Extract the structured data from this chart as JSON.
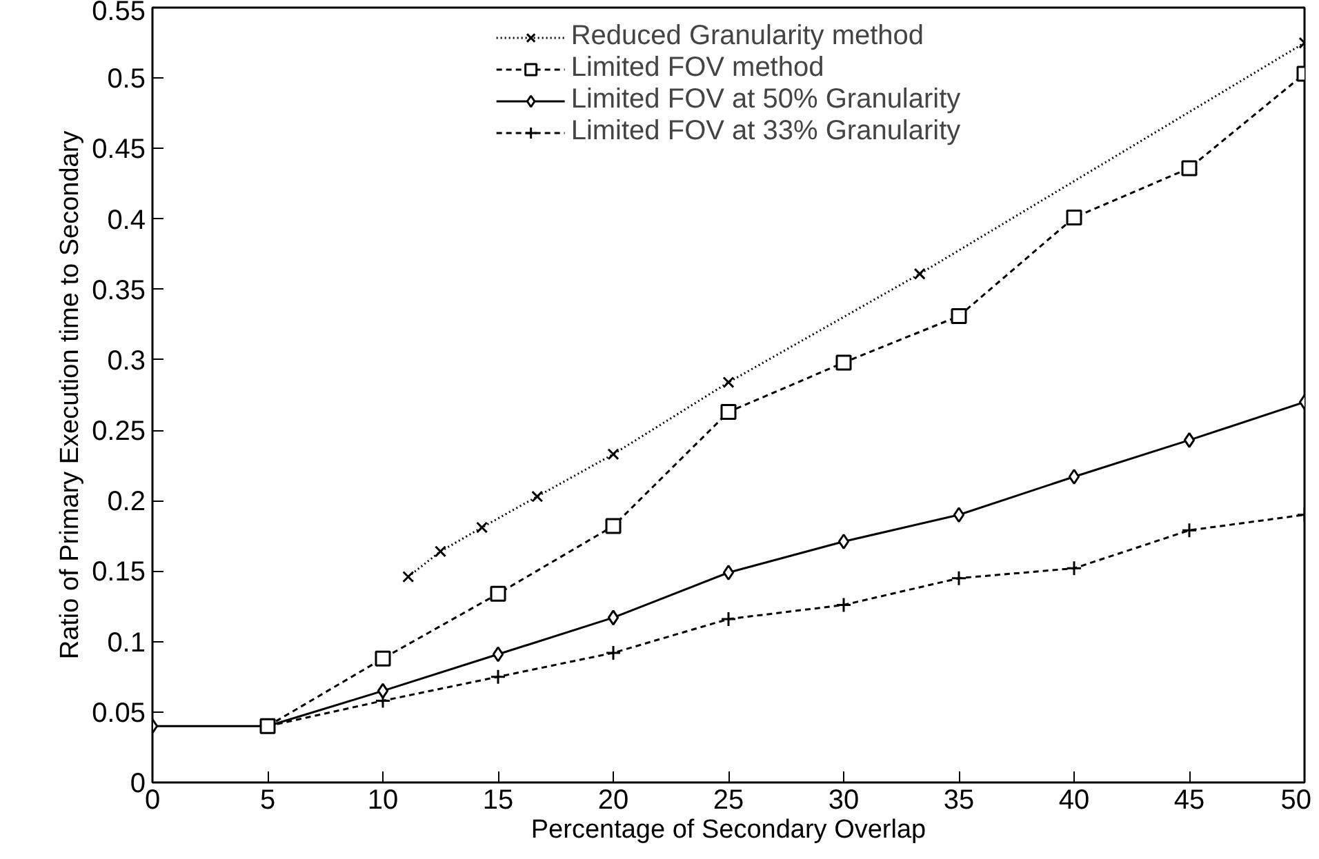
{
  "chart_data": {
    "type": "line",
    "xlabel": "Percentage of Secondary Overlap",
    "ylabel": "Ratio of Primary Execution time to Secondary",
    "xlim": [
      0,
      50
    ],
    "xticks": [
      0,
      5,
      10,
      15,
      20,
      25,
      30,
      35,
      40,
      45,
      50
    ],
    "ylim": [
      0,
      0.55
    ],
    "yticks": [
      0,
      0.05,
      0.1,
      0.15,
      0.2,
      0.25,
      0.3,
      0.35,
      0.4,
      0.45,
      0.5,
      0.55
    ],
    "grid": false,
    "legend": "top",
    "series": [
      {
        "name": "Reduced Granularity method",
        "color": "#000000",
        "marker": "x",
        "line_style": "dotted",
        "x": [
          11.1,
          12.5,
          14.3,
          16.7,
          20,
          25,
          33.3,
          50
        ],
        "values": [
          0.146,
          0.164,
          0.181,
          0.203,
          0.233,
          0.284,
          0.361,
          0.525
        ]
      },
      {
        "name": "Limited FOV method",
        "color": "#000000",
        "marker": "square",
        "line_style": "dashed",
        "x": [
          5,
          10,
          15,
          20,
          25,
          30,
          35,
          40,
          45,
          50
        ],
        "values": [
          0.04,
          0.088,
          0.134,
          0.182,
          0.263,
          0.298,
          0.331,
          0.401,
          0.436,
          0.503
        ]
      },
      {
        "name": "Limited FOV at 50% Granularity",
        "color": "#000000",
        "marker": "diamond",
        "line_style": "solid",
        "x": [
          0,
          5,
          10,
          15,
          20,
          25,
          30,
          35,
          40,
          45,
          50
        ],
        "values": [
          0.04,
          0.04,
          0.065,
          0.091,
          0.117,
          0.149,
          0.171,
          0.19,
          0.217,
          0.243,
          0.27
        ]
      },
      {
        "name": "Limited FOV at 33% Granularity",
        "color": "#000000",
        "marker": "cross",
        "line_style": "dashed",
        "x": [
          5,
          10,
          15,
          20,
          25,
          30,
          35,
          40,
          45,
          50
        ],
        "values": [
          0.04,
          0.058,
          0.075,
          0.092,
          0.116,
          0.126,
          0.145,
          0.152,
          0.179,
          0.19
        ]
      }
    ]
  }
}
